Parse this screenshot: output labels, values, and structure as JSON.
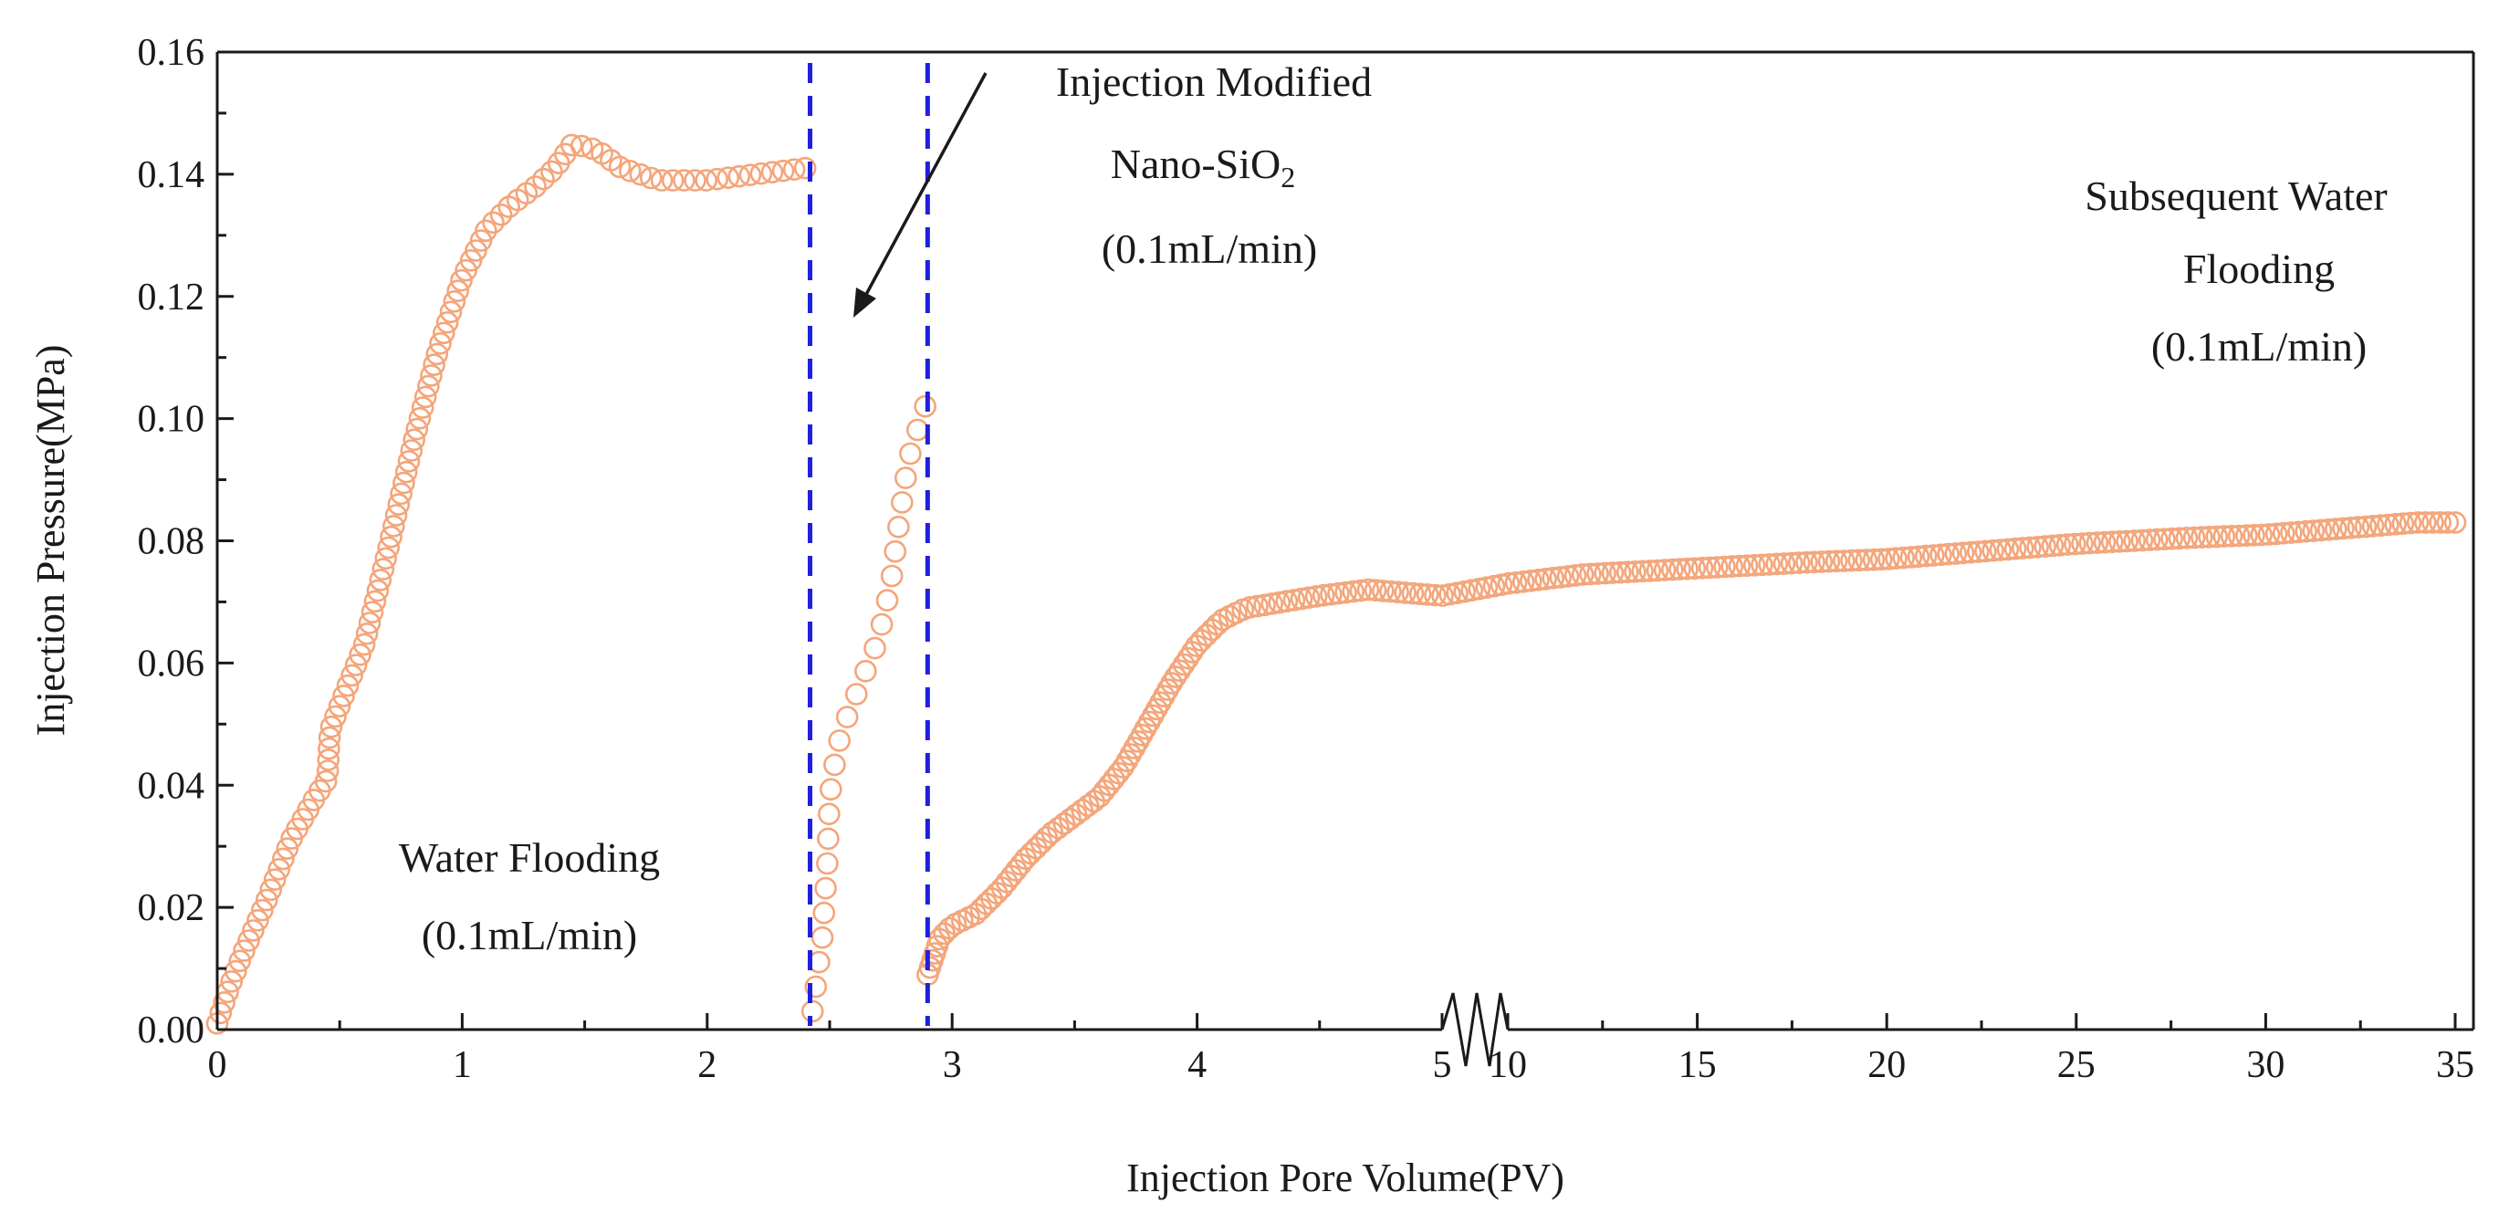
{
  "chart_data": {
    "type": "scatter",
    "title": "",
    "xlabel": "Injection Pore Volume(PV)",
    "ylabel": "Injection Pressure(MPa)",
    "ylim": [
      0,
      0.16
    ],
    "x_break": {
      "from": 5,
      "to": 10
    },
    "x_left": {
      "range": [
        0,
        5
      ],
      "ticks": [
        "0",
        "1",
        "2",
        "3",
        "4",
        "5"
      ]
    },
    "x_right": {
      "range": [
        10,
        35
      ],
      "ticks": [
        "10",
        "15",
        "20",
        "25",
        "30",
        "35"
      ]
    },
    "y_ticks": [
      "0.00",
      "0.02",
      "0.04",
      "0.06",
      "0.08",
      "0.10",
      "0.12",
      "0.14",
      "0.16"
    ],
    "y_tick_values": [
      0,
      0.02,
      0.04,
      0.06,
      0.08,
      0.1,
      0.12,
      0.14,
      0.16
    ],
    "marker_color": "#f4a57a",
    "divider_color": "#1f1fe0",
    "dividers_x": [
      2.42,
      2.9
    ],
    "series": [
      {
        "name": "Water Flooding",
        "curve": [
          [
            0,
            0.001
          ],
          [
            0.05,
            0.007
          ],
          [
            0.1,
            0.012
          ],
          [
            0.2,
            0.021
          ],
          [
            0.3,
            0.031
          ],
          [
            0.4,
            0.038
          ],
          [
            0.45,
            0.041
          ],
          [
            0.46,
            0.049
          ],
          [
            0.5,
            0.053
          ],
          [
            0.6,
            0.063
          ],
          [
            0.7,
            0.079
          ],
          [
            0.8,
            0.096
          ],
          [
            0.9,
            0.111
          ],
          [
            1.0,
            0.123
          ],
          [
            1.1,
            0.131
          ],
          [
            1.2,
            0.135
          ],
          [
            1.3,
            0.138
          ],
          [
            1.38,
            0.141
          ],
          [
            1.45,
            0.145
          ],
          [
            1.55,
            0.144
          ],
          [
            1.65,
            0.141
          ],
          [
            1.8,
            0.139
          ],
          [
            2.0,
            0.139
          ],
          [
            2.2,
            0.14
          ],
          [
            2.4,
            0.141
          ]
        ],
        "count": 110
      },
      {
        "name": "Injection Modified Nano-SiO2",
        "curve": [
          [
            2.43,
            0.003
          ],
          [
            2.47,
            0.015
          ],
          [
            2.49,
            0.027
          ],
          [
            2.5,
            0.038
          ],
          [
            2.53,
            0.046
          ],
          [
            2.56,
            0.05
          ],
          [
            2.6,
            0.054
          ],
          [
            2.65,
            0.059
          ],
          [
            2.7,
            0.064
          ],
          [
            2.75,
            0.073
          ],
          [
            2.78,
            0.082
          ],
          [
            2.82,
            0.093
          ],
          [
            2.85,
            0.097
          ],
          [
            2.88,
            0.101
          ],
          [
            2.89,
            0.102
          ]
        ],
        "count": 26
      },
      {
        "name": "Subsequent Water Flooding",
        "curve": [
          [
            2.9,
            0.009
          ],
          [
            2.95,
            0.015
          ],
          [
            3.0,
            0.017
          ],
          [
            3.1,
            0.019
          ],
          [
            3.2,
            0.023
          ],
          [
            3.3,
            0.028
          ],
          [
            3.4,
            0.032
          ],
          [
            3.6,
            0.038
          ],
          [
            3.7,
            0.043
          ],
          [
            3.8,
            0.05
          ],
          [
            3.9,
            0.057
          ],
          [
            4.0,
            0.063
          ],
          [
            4.1,
            0.067
          ],
          [
            4.2,
            0.069
          ],
          [
            4.35,
            0.07
          ],
          [
            4.5,
            0.071
          ],
          [
            4.7,
            0.072
          ],
          [
            5.0,
            0.071
          ],
          [
            10,
            0.073
          ],
          [
            12,
            0.0745
          ],
          [
            15,
            0.0755
          ],
          [
            18,
            0.0765
          ],
          [
            20,
            0.077
          ],
          [
            22,
            0.078
          ],
          [
            25,
            0.0795
          ],
          [
            28,
            0.0805
          ],
          [
            30,
            0.081
          ],
          [
            32,
            0.082
          ],
          [
            34,
            0.083
          ],
          [
            35,
            0.083
          ]
        ],
        "count": 230
      }
    ],
    "annotations": {
      "water": {
        "line1": "Water Flooding",
        "line2": "(0.1mL/min)"
      },
      "nano": {
        "line1": "Injection Modified",
        "line2": "Nano-SiO",
        "subscript": "2",
        "line3": "(0.1mL/min)"
      },
      "subsequent": {
        "line1": "Subsequent Water",
        "line2": "Flooding",
        "line3": "(0.1mL/min)"
      }
    }
  }
}
